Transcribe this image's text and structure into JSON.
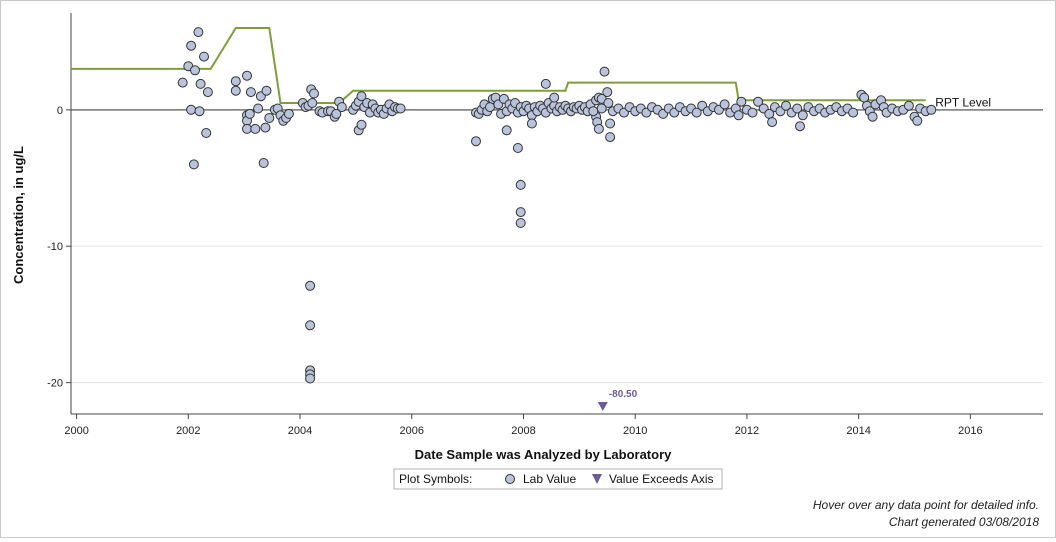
{
  "chart_data": {
    "type": "scatter",
    "xlabel": "Date Sample was Analyzed by Laboratory",
    "ylabel": "Concentration, in ug/L",
    "xlim": [
      1999.9,
      2017.3
    ],
    "ylim": [
      -22.3,
      7.1
    ],
    "x_ticks": [
      2000,
      2002,
      2004,
      2006,
      2008,
      2010,
      2012,
      2014,
      2016
    ],
    "y_ticks": [
      -20,
      -10,
      0
    ],
    "x_tick_labels": [
      "2000",
      "2002",
      "2004",
      "2006",
      "2008",
      "2010",
      "2012",
      "2014",
      "2016"
    ],
    "y_tick_labels": [
      "-20",
      "-10",
      "0"
    ],
    "grid": "horizontal",
    "zero_line": 0,
    "colors": {
      "marker_fill": "#b9c4dc",
      "marker_stroke": "#333333",
      "rpt_line": "#7e9e3a",
      "exceed_marker": "#6e5a97",
      "grid": "#e3e3e3",
      "zero_line": "#888888"
    },
    "rpt_series": {
      "label": "RPT Level",
      "points": [
        [
          1999.9,
          3.0
        ],
        [
          2000.4,
          3.0
        ],
        [
          2002.0,
          3.0
        ],
        [
          2002.4,
          3.0
        ],
        [
          2002.85,
          6.0
        ],
        [
          2003.45,
          6.0
        ],
        [
          2003.65,
          0.5
        ],
        [
          2004.7,
          0.5
        ],
        [
          2004.95,
          1.4
        ],
        [
          2008.75,
          1.4
        ],
        [
          2008.8,
          2.0
        ],
        [
          2011.8,
          2.0
        ],
        [
          2011.85,
          0.7
        ],
        [
          2015.2,
          0.7
        ]
      ]
    },
    "lab_values": [
      [
        2001.9,
        2.0
      ],
      [
        2002.0,
        3.2
      ],
      [
        2002.05,
        4.7
      ],
      [
        2002.12,
        2.9
      ],
      [
        2002.18,
        5.7
      ],
      [
        2002.28,
        3.9
      ],
      [
        2002.22,
        1.9
      ],
      [
        2002.35,
        1.3
      ],
      [
        2002.05,
        0.0
      ],
      [
        2002.2,
        -0.1
      ],
      [
        2002.1,
        -4.0
      ],
      [
        2002.32,
        -1.7
      ],
      [
        2002.85,
        2.1
      ],
      [
        2002.85,
        1.4
      ],
      [
        2003.05,
        2.5
      ],
      [
        2003.12,
        1.3
      ],
      [
        2003.3,
        1.0
      ],
      [
        2003.4,
        1.4
      ],
      [
        2003.25,
        0.1
      ],
      [
        2003.05,
        -0.4
      ],
      [
        2003.05,
        -0.8
      ],
      [
        2003.05,
        -1.4
      ],
      [
        2003.1,
        -0.3
      ],
      [
        2003.2,
        -1.4
      ],
      [
        2003.38,
        -1.3
      ],
      [
        2003.45,
        -0.6
      ],
      [
        2003.35,
        -3.9
      ],
      [
        2003.55,
        0.0
      ],
      [
        2003.6,
        0.1
      ],
      [
        2003.65,
        -0.4
      ],
      [
        2003.7,
        -0.8
      ],
      [
        2003.75,
        -0.6
      ],
      [
        2003.8,
        -0.3
      ],
      [
        2004.05,
        0.5
      ],
      [
        2004.1,
        0.2
      ],
      [
        2004.15,
        0.3
      ],
      [
        2004.2,
        1.5
      ],
      [
        2004.25,
        1.2
      ],
      [
        2004.22,
        0.5
      ],
      [
        2004.35,
        -0.1
      ],
      [
        2004.4,
        -0.2
      ],
      [
        2004.5,
        -0.1
      ],
      [
        2004.55,
        -0.1
      ],
      [
        2004.62,
        -0.5
      ],
      [
        2004.65,
        -0.3
      ],
      [
        2004.7,
        0.6
      ],
      [
        2004.75,
        0.2
      ],
      [
        2004.18,
        -12.9
      ],
      [
        2004.18,
        -15.8
      ],
      [
        2004.18,
        -19.1
      ],
      [
        2004.18,
        -19.4
      ],
      [
        2004.18,
        -19.7
      ],
      [
        2004.95,
        0.0
      ],
      [
        2005.0,
        0.3
      ],
      [
        2005.05,
        0.6
      ],
      [
        2005.1,
        1.0
      ],
      [
        2005.15,
        0.2
      ],
      [
        2005.2,
        0.5
      ],
      [
        2005.25,
        -0.2
      ],
      [
        2005.3,
        0.4
      ],
      [
        2005.35,
        0.1
      ],
      [
        2005.4,
        -0.2
      ],
      [
        2005.45,
        0.0
      ],
      [
        2005.5,
        -0.3
      ],
      [
        2005.55,
        0.1
      ],
      [
        2005.6,
        0.4
      ],
      [
        2005.65,
        -0.1
      ],
      [
        2005.7,
        0.2
      ],
      [
        2005.75,
        0.1
      ],
      [
        2005.8,
        0.1
      ],
      [
        2005.05,
        -1.5
      ],
      [
        2005.1,
        -1.1
      ],
      [
        2007.15,
        -0.2
      ],
      [
        2007.2,
        -0.3
      ],
      [
        2007.25,
        0.0
      ],
      [
        2007.3,
        0.4
      ],
      [
        2007.35,
        -0.1
      ],
      [
        2007.4,
        0.2
      ],
      [
        2007.45,
        0.8
      ],
      [
        2007.5,
        0.9
      ],
      [
        2007.55,
        0.4
      ],
      [
        2007.6,
        -0.3
      ],
      [
        2007.65,
        0.8
      ],
      [
        2007.7,
        -0.1
      ],
      [
        2007.75,
        0.4
      ],
      [
        2007.8,
        0.1
      ],
      [
        2007.85,
        0.5
      ],
      [
        2007.9,
        -0.2
      ],
      [
        2007.95,
        0.2
      ],
      [
        2008.0,
        -0.1
      ],
      [
        2008.05,
        0.3
      ],
      [
        2008.1,
        0.1
      ],
      [
        2008.15,
        -0.4
      ],
      [
        2008.2,
        0.2
      ],
      [
        2008.25,
        -0.1
      ],
      [
        2008.3,
        0.3
      ],
      [
        2008.35,
        0.1
      ],
      [
        2008.4,
        -0.2
      ],
      [
        2008.45,
        0.5
      ],
      [
        2008.5,
        0.1
      ],
      [
        2008.55,
        0.3
      ],
      [
        2008.6,
        -0.1
      ],
      [
        2008.65,
        0.2
      ],
      [
        2008.7,
        0.0
      ],
      [
        2008.75,
        0.3
      ],
      [
        2008.8,
        0.1
      ],
      [
        2008.85,
        -0.1
      ],
      [
        2008.9,
        0.2
      ],
      [
        2008.95,
        0.1
      ],
      [
        2009.0,
        0.3
      ],
      [
        2009.05,
        0.0
      ],
      [
        2009.1,
        0.2
      ],
      [
        2009.15,
        -0.1
      ],
      [
        2009.2,
        0.4
      ],
      [
        2007.15,
        -2.3
      ],
      [
        2007.7,
        -1.5
      ],
      [
        2008.15,
        -1.0
      ],
      [
        2008.4,
        1.9
      ],
      [
        2008.55,
        0.9
      ],
      [
        2007.9,
        -2.8
      ],
      [
        2007.95,
        -5.5
      ],
      [
        2007.95,
        -7.5
      ],
      [
        2007.95,
        -8.3
      ],
      [
        2009.3,
        0.7
      ],
      [
        2009.35,
        0.9
      ],
      [
        2009.4,
        0.8
      ],
      [
        2009.45,
        2.8
      ],
      [
        2009.5,
        1.3
      ],
      [
        2009.52,
        0.5
      ],
      [
        2009.3,
        -0.5
      ],
      [
        2009.32,
        -0.9
      ],
      [
        2009.35,
        -1.4
      ],
      [
        2009.55,
        -1.0
      ],
      [
        2009.55,
        -2.0
      ],
      [
        2009.25,
        -0.1
      ],
      [
        2009.4,
        0.1
      ],
      [
        2009.6,
        -0.1
      ],
      [
        2009.7,
        0.1
      ],
      [
        2009.8,
        -0.2
      ],
      [
        2009.9,
        0.2
      ],
      [
        2010.0,
        -0.1
      ],
      [
        2010.1,
        0.1
      ],
      [
        2010.2,
        -0.2
      ],
      [
        2010.3,
        0.2
      ],
      [
        2010.4,
        0.0
      ],
      [
        2010.5,
        -0.3
      ],
      [
        2010.6,
        0.1
      ],
      [
        2010.7,
        -0.2
      ],
      [
        2010.8,
        0.2
      ],
      [
        2010.9,
        -0.1
      ],
      [
        2011.0,
        0.1
      ],
      [
        2011.1,
        -0.2
      ],
      [
        2011.2,
        0.3
      ],
      [
        2011.3,
        -0.1
      ],
      [
        2011.4,
        0.2
      ],
      [
        2011.5,
        0.0
      ],
      [
        2011.6,
        0.4
      ],
      [
        2011.7,
        -0.2
      ],
      [
        2011.8,
        0.1
      ],
      [
        2011.85,
        -0.4
      ],
      [
        2011.9,
        0.6
      ],
      [
        2012.0,
        0.0
      ],
      [
        2012.1,
        -0.2
      ],
      [
        2012.2,
        0.6
      ],
      [
        2012.3,
        0.1
      ],
      [
        2012.4,
        -0.3
      ],
      [
        2012.5,
        0.2
      ],
      [
        2012.45,
        -0.9
      ],
      [
        2012.6,
        -0.1
      ],
      [
        2012.7,
        0.3
      ],
      [
        2012.8,
        -0.2
      ],
      [
        2012.9,
        0.1
      ],
      [
        2013.0,
        -0.4
      ],
      [
        2012.95,
        -1.2
      ],
      [
        2013.1,
        0.2
      ],
      [
        2013.2,
        -0.1
      ],
      [
        2013.3,
        0.1
      ],
      [
        2013.4,
        -0.2
      ],
      [
        2013.5,
        0.0
      ],
      [
        2013.6,
        0.2
      ],
      [
        2013.7,
        -0.1
      ],
      [
        2013.8,
        0.1
      ],
      [
        2013.9,
        -0.2
      ],
      [
        2014.05,
        1.1
      ],
      [
        2014.1,
        0.9
      ],
      [
        2014.15,
        0.3
      ],
      [
        2014.2,
        -0.1
      ],
      [
        2014.25,
        -0.5
      ],
      [
        2014.3,
        0.4
      ],
      [
        2014.4,
        0.7
      ],
      [
        2014.45,
        0.2
      ],
      [
        2014.5,
        -0.2
      ],
      [
        2014.6,
        0.1
      ],
      [
        2014.7,
        -0.1
      ],
      [
        2014.8,
        0.0
      ],
      [
        2014.9,
        0.3
      ],
      [
        2015.0,
        -0.5
      ],
      [
        2015.05,
        -0.8
      ],
      [
        2015.1,
        0.1
      ],
      [
        2015.2,
        -0.1
      ],
      [
        2015.3,
        0.0
      ]
    ],
    "exceeds_axis": [
      {
        "x": 2009.42,
        "value_label": "-80.50"
      }
    ],
    "rpt_label": "RPT Level"
  },
  "legend": {
    "title": "Plot Symbols:",
    "items": [
      {
        "label": "Lab Value",
        "symbol": "circle"
      },
      {
        "label": "Value Exceeds Axis",
        "symbol": "triangle-down"
      }
    ]
  },
  "footnotes": {
    "hover_hint": "Hover over any data point for detailed info.",
    "generated": "Chart generated 03/08/2018"
  }
}
